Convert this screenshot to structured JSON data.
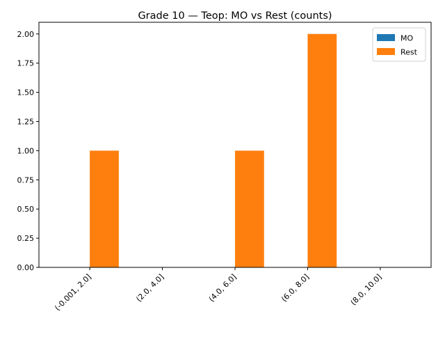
{
  "chart_data": {
    "type": "bar",
    "title": "Grade 10 — Teop: MO vs Rest (counts)",
    "xlabel": "",
    "ylabel": "",
    "categories": [
      "(-0.001, 2.0]",
      "(2.0, 4.0]",
      "(4.0, 6.0]",
      "(6.0, 8.0]",
      "(8.0, 10.0]"
    ],
    "series": [
      {
        "name": "MO",
        "values": [
          0,
          0,
          0,
          0,
          0
        ],
        "color": "#1f77b4"
      },
      {
        "name": "Rest",
        "values": [
          1,
          0,
          1,
          2,
          0
        ],
        "color": "#ff7f0e"
      }
    ],
    "ylim": [
      0,
      2.1
    ],
    "yticks": [
      "0.00",
      "0.25",
      "0.50",
      "0.75",
      "1.00",
      "1.25",
      "1.50",
      "1.75",
      "2.00"
    ],
    "grid": false,
    "legend": "top-right"
  }
}
